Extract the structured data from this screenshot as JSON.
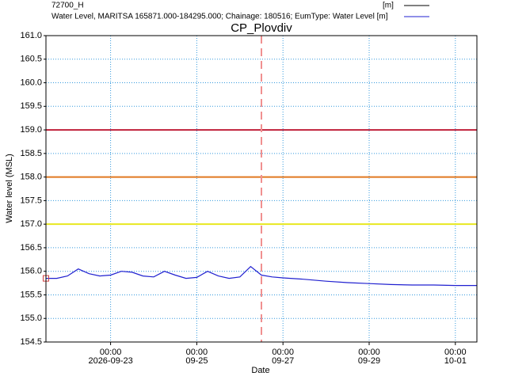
{
  "chart_data": {
    "type": "line",
    "title": "CP_Plovdiv",
    "y_label": "Water level (MSL)",
    "x_label": "Date",
    "x": [
      "2026-09-21 12:00",
      "2026-09-21 18:00",
      "2026-09-22 00:00",
      "2026-09-22 06:00",
      "2026-09-22 12:00",
      "2026-09-22 18:00",
      "2026-09-23 00:00",
      "2026-09-23 06:00",
      "2026-09-23 12:00",
      "2026-09-23 18:00",
      "2026-09-24 00:00",
      "2026-09-24 06:00",
      "2026-09-24 12:00",
      "2026-09-24 18:00",
      "2026-09-25 00:00",
      "2026-09-25 06:00",
      "2026-09-25 12:00",
      "2026-09-25 18:00",
      "2026-09-26 00:00",
      "2026-09-26 06:00",
      "2026-09-26 12:00",
      "2026-09-26 18:00",
      "2026-09-27 00:00",
      "2026-09-27 12:00",
      "2026-09-28 00:00",
      "2026-09-28 12:00",
      "2026-09-29 00:00",
      "2026-09-29 12:00",
      "2026-09-30 00:00",
      "2026-09-30 12:00",
      "2026-10-01 00:00",
      "2026-10-01 12:00"
    ],
    "series": [
      {
        "name": "Water Level, MARITSA 165871.000-184295.000; Chainage: 180516; EumType: Water Level [m]",
        "unit": "",
        "color": "#2020d0",
        "values": [
          155.85,
          155.85,
          155.9,
          156.05,
          155.95,
          155.9,
          155.92,
          156.0,
          155.98,
          155.9,
          155.88,
          156.0,
          155.92,
          155.85,
          155.87,
          156.0,
          155.9,
          155.85,
          155.88,
          156.1,
          155.92,
          155.88,
          155.86,
          155.83,
          155.79,
          155.76,
          155.74,
          155.72,
          155.71,
          155.71,
          155.7,
          155.7
        ]
      },
      {
        "name": "72700_H",
        "unit": "[m]",
        "color": "#000000",
        "marker_color": "#d04040",
        "x": [
          "2026-09-21 12:00"
        ],
        "values": [
          155.85
        ]
      }
    ],
    "xlim": [
      "2026-09-21 12:00",
      "2026-10-01 12:00"
    ],
    "xticks": [
      {
        "value": "2026-09-23 00:00",
        "label": [
          "00:00",
          "2026-09-23"
        ]
      },
      {
        "value": "2026-09-25 00:00",
        "label": [
          "00:00",
          "09-25"
        ]
      },
      {
        "value": "2026-09-27 00:00",
        "label": [
          "00:00",
          "09-27"
        ]
      },
      {
        "value": "2026-09-29 00:00",
        "label": [
          "00:00",
          "09-29"
        ]
      },
      {
        "value": "2026-10-01 00:00",
        "label": [
          "00:00",
          "10-01"
        ]
      }
    ],
    "ylim": [
      154.5,
      161.0
    ],
    "yticks": [
      {
        "value": 154.5,
        "label": "154.5"
      },
      {
        "value": 155,
        "label": "155.0"
      },
      {
        "value": 155.5,
        "label": "155.5"
      },
      {
        "value": 156,
        "label": "156.0"
      },
      {
        "value": 156.5,
        "label": "156.5"
      },
      {
        "value": 157,
        "label": "157.0"
      },
      {
        "value": 157.5,
        "label": "157.5"
      },
      {
        "value": 158,
        "label": "158.0"
      },
      {
        "value": 158.5,
        "label": "158.5"
      },
      {
        "value": 159,
        "label": "159.0"
      },
      {
        "value": 159.5,
        "label": "159.5"
      },
      {
        "value": 160,
        "label": "160.0"
      },
      {
        "value": 160.5,
        "label": "160.5"
      },
      {
        "value": 161,
        "label": "161.0"
      }
    ],
    "grid": true,
    "hlines": [
      {
        "value": 159,
        "color": "#c0203a"
      },
      {
        "value": 158,
        "color": "#e07820"
      },
      {
        "value": 157,
        "color": "#e8e820"
      }
    ],
    "vlines": [
      {
        "value": "2026-09-26 12:00",
        "color": "#f09090"
      }
    ]
  }
}
